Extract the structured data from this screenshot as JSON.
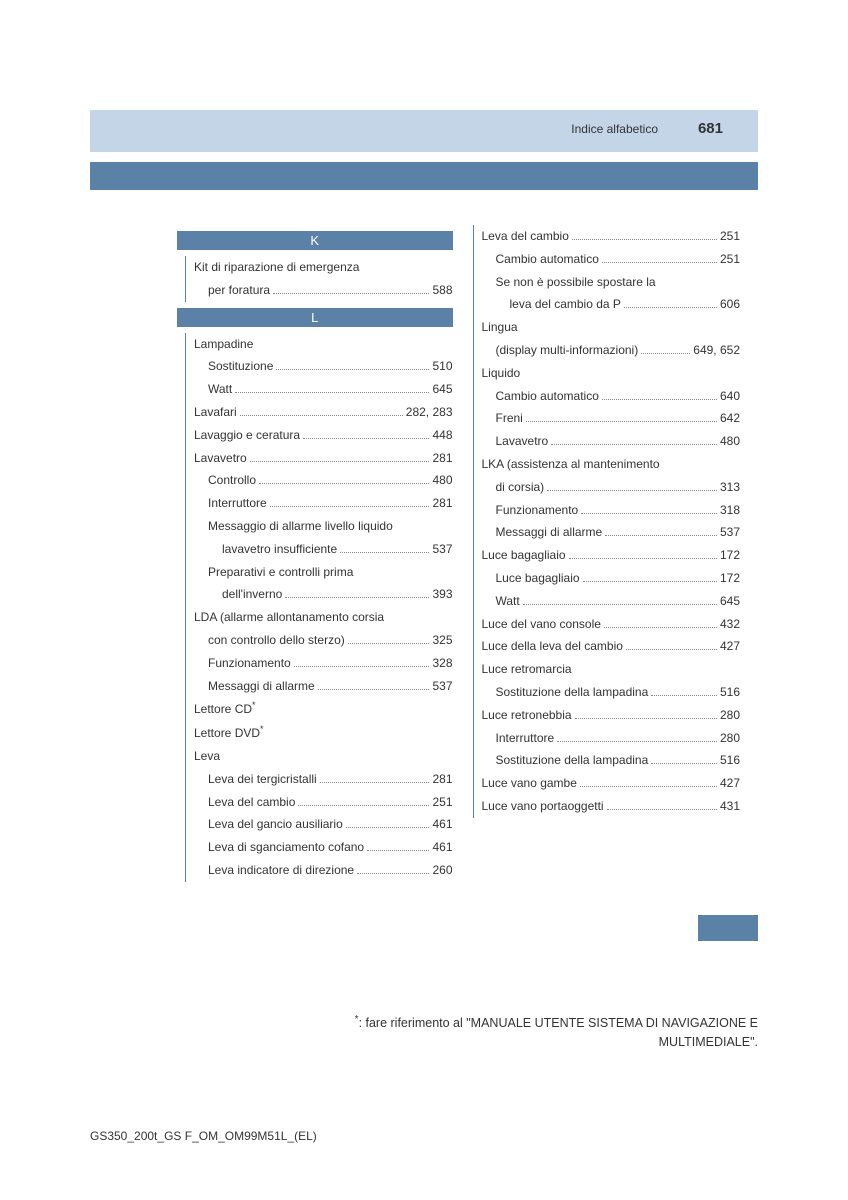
{
  "header": {
    "title": "Indice alfabetico",
    "page": "681"
  },
  "footnote": ": fare riferimento al \"MANUALE UTENTE SISTEMA DI NAVIGAZIONE E MULTIMEDIALE\".",
  "footer": "GS350_200t_GS F_OM_OM99M51L_(EL)",
  "left": {
    "sections": [
      {
        "letter": "K",
        "entries": [
          {
            "label": "Kit di riparazione di emergenza",
            "nopage": true
          },
          {
            "label": "per foratura",
            "sub": 1,
            "pages": "588"
          }
        ]
      },
      {
        "letter": "L",
        "entries": [
          {
            "label": "Lampadine",
            "nopage": true
          },
          {
            "label": "Sostituzione",
            "sub": 1,
            "pages": "510"
          },
          {
            "label": "Watt",
            "sub": 1,
            "pages": "645"
          },
          {
            "label": "Lavafari",
            "pages": "282, 283"
          },
          {
            "label": "Lavaggio e ceratura",
            "pages": "448"
          },
          {
            "label": "Lavavetro",
            "pages": "281"
          },
          {
            "label": "Controllo",
            "sub": 1,
            "pages": "480"
          },
          {
            "label": "Interruttore",
            "sub": 1,
            "pages": "281"
          },
          {
            "label": "Messaggio di allarme livello liquido",
            "sub": 1,
            "nopage": true
          },
          {
            "label": "lavavetro insufficiente",
            "sub": 2,
            "pages": "537"
          },
          {
            "label": "Preparativi e controlli prima",
            "sub": 1,
            "nopage": true
          },
          {
            "label": "dell'inverno",
            "sub": 2,
            "pages": "393"
          },
          {
            "label": "LDA (allarme allontanamento corsia",
            "nopage": true
          },
          {
            "label": "con controllo dello sterzo)",
            "sub": 1,
            "pages": "325"
          },
          {
            "label": "Funzionamento",
            "sub": 1,
            "pages": "328"
          },
          {
            "label": "Messaggi di allarme",
            "sub": 1,
            "pages": "537"
          },
          {
            "label": "Lettore CD",
            "asterisk": true,
            "nopage": true
          },
          {
            "label": "Lettore DVD",
            "asterisk": true,
            "nopage": true
          },
          {
            "label": "Leva",
            "nopage": true
          },
          {
            "label": "Leva dei tergicristalli",
            "sub": 1,
            "pages": "281"
          },
          {
            "label": "Leva del cambio",
            "sub": 1,
            "pages": "251"
          },
          {
            "label": "Leva del gancio ausiliario",
            "sub": 1,
            "pages": "461"
          },
          {
            "label": "Leva di sganciamento cofano",
            "sub": 1,
            "pages": "461"
          },
          {
            "label": "Leva indicatore di direzione",
            "sub": 1,
            "pages": "260"
          }
        ]
      }
    ]
  },
  "right": {
    "entries": [
      {
        "label": "Leva del cambio",
        "pages": "251"
      },
      {
        "label": "Cambio automatico",
        "sub": 1,
        "pages": "251"
      },
      {
        "label": "Se non è possibile spostare la",
        "sub": 1,
        "nopage": true
      },
      {
        "label": "leva del cambio da P",
        "sub": 2,
        "pages": "606"
      },
      {
        "label": "Lingua",
        "nopage": true
      },
      {
        "label": "(display multi-informazioni)",
        "sub": 1,
        "pages": "649, 652"
      },
      {
        "label": "Liquido",
        "nopage": true
      },
      {
        "label": "Cambio automatico",
        "sub": 1,
        "pages": "640"
      },
      {
        "label": "Freni",
        "sub": 1,
        "pages": "642"
      },
      {
        "label": "Lavavetro",
        "sub": 1,
        "pages": "480"
      },
      {
        "label": "LKA (assistenza al mantenimento",
        "nopage": true
      },
      {
        "label": "di corsia)",
        "sub": 1,
        "pages": "313"
      },
      {
        "label": "Funzionamento",
        "sub": 1,
        "pages": "318"
      },
      {
        "label": "Messaggi di allarme",
        "sub": 1,
        "pages": "537"
      },
      {
        "label": "Luce bagagliaio",
        "pages": "172"
      },
      {
        "label": "Luce bagagliaio",
        "sub": 1,
        "pages": "172"
      },
      {
        "label": "Watt",
        "sub": 1,
        "pages": "645"
      },
      {
        "label": "Luce del vano console",
        "pages": "432"
      },
      {
        "label": "Luce della leva del cambio",
        "pages": "427"
      },
      {
        "label": "Luce retromarcia",
        "nopage": true
      },
      {
        "label": "Sostituzione della lampadina",
        "sub": 1,
        "pages": "516"
      },
      {
        "label": "Luce retronebbia",
        "pages": "280"
      },
      {
        "label": "Interruttore",
        "sub": 1,
        "pages": "280"
      },
      {
        "label": "Sostituzione della lampadina",
        "sub": 1,
        "pages": "516"
      },
      {
        "label": "Luce vano gambe",
        "pages": "427"
      },
      {
        "label": "Luce vano portaoggetti",
        "pages": "431"
      }
    ]
  }
}
